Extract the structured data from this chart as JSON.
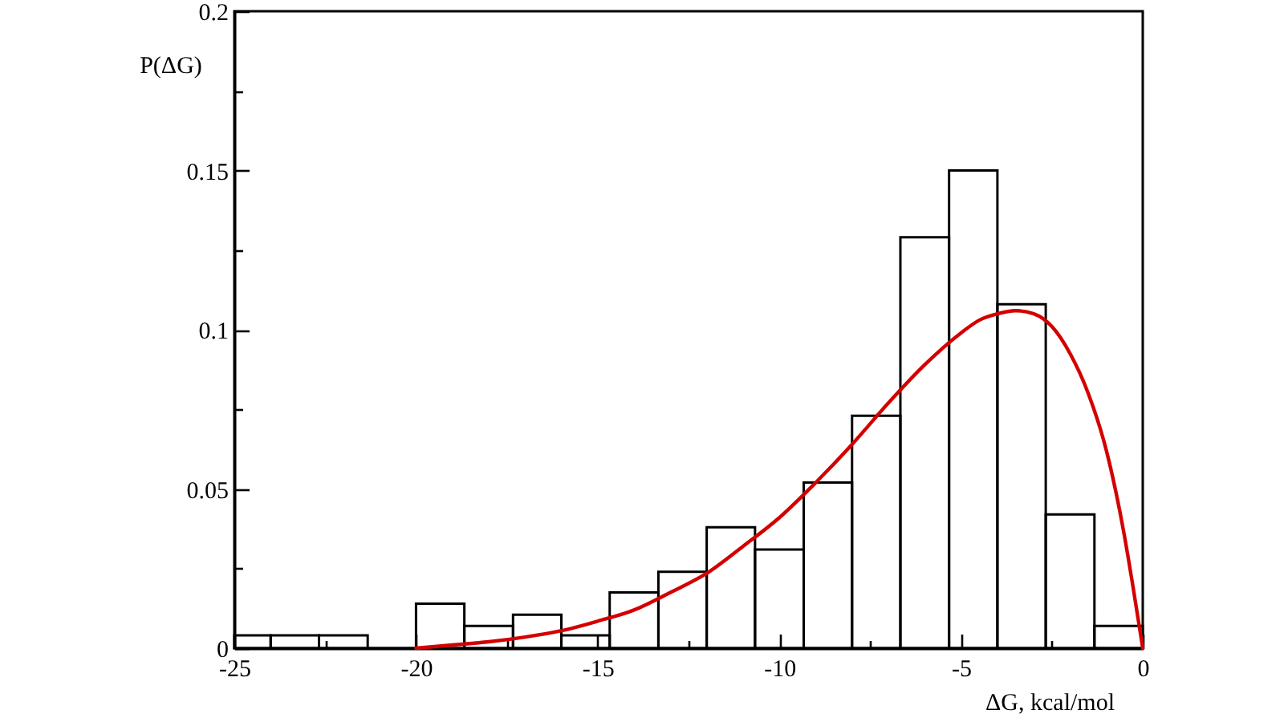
{
  "chart_data": {
    "type": "histogram",
    "xlabel": "ΔG, kcal/mol",
    "ylabel": "P(ΔG)",
    "xlim": [
      -25,
      0
    ],
    "ylim": [
      0,
      0.2
    ],
    "xticks": [
      -25,
      {
        "value": -22.5,
        "label": null
      },
      -20,
      {
        "value": -17.5,
        "label": null
      },
      -15,
      {
        "value": -12.5,
        "label": null
      },
      -10,
      {
        "value": -7.5,
        "label": null
      },
      -5,
      {
        "value": -2.5,
        "label": null
      },
      0
    ],
    "yticks": [
      0,
      {
        "value": 0.025,
        "label": null
      },
      0.05,
      {
        "value": 0.075,
        "label": null
      },
      0.1,
      {
        "value": 0.125,
        "label": null
      },
      0.15,
      {
        "value": 0.175,
        "label": null
      },
      0.2
    ],
    "series": [
      {
        "type": "histogram",
        "color": "#000000",
        "bins": [
          -25,
          -24,
          -22.67,
          -21.33,
          -20,
          -18.67,
          -17.33,
          -16,
          -14.67,
          -13.33,
          -12,
          -10.67,
          -9.33,
          -8,
          -6.67,
          -5.33,
          -4,
          -2.67,
          -1.33,
          0
        ],
        "values": [
          0.004,
          0.004,
          0.004,
          0,
          0.014,
          0.007,
          0.0105,
          0.004,
          0.0175,
          0.024,
          0.038,
          0.031,
          0.052,
          0.073,
          0.129,
          0.15,
          0.108,
          0.042,
          0.007
        ]
      },
      {
        "type": "line",
        "color": "#d40000",
        "x": [
          -20,
          -19,
          -18,
          -17,
          -16,
          -15,
          -14,
          -13,
          -12,
          -11,
          -10,
          -9,
          -8,
          -7,
          -6,
          -5,
          -4.5,
          -4,
          -3.5,
          -3,
          -2.5,
          -2,
          -1.5,
          -1,
          -0.5,
          -0.25,
          0
        ],
        "values": [
          0,
          0.001,
          0.002,
          0.0035,
          0.0055,
          0.0085,
          0.012,
          0.0175,
          0.0235,
          0.032,
          0.041,
          0.052,
          0.064,
          0.077,
          0.089,
          0.099,
          0.103,
          0.105,
          0.106,
          0.105,
          0.101,
          0.0925,
          0.08,
          0.062,
          0.035,
          0.018,
          0
        ]
      }
    ]
  }
}
